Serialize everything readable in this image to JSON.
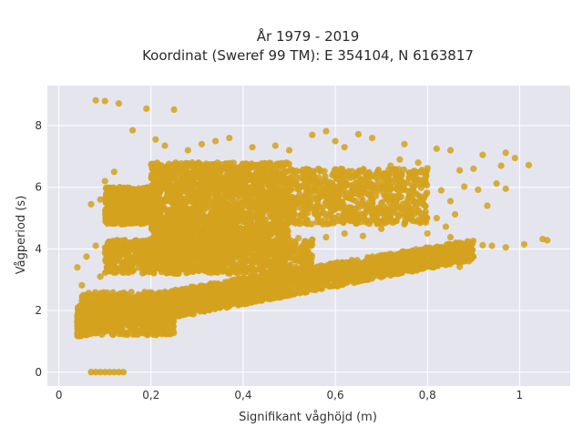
{
  "chart_data": {
    "type": "scatter",
    "title": "År 1979 - 2019",
    "subtitle": "Koordinat (Sweref 99 TM): E 354104, N 6163817",
    "xlabel": "Signifikant våghöjd (m)",
    "ylabel": "Vågperiod (s)",
    "xlim": [
      -0.025,
      1.11
    ],
    "ylim": [
      -0.45,
      9.3
    ],
    "xticks": [
      0,
      0.2,
      0.4,
      0.6,
      0.8,
      1
    ],
    "xtick_labels": [
      "0",
      "0,2",
      "0,4",
      "0,6",
      "0,8",
      "1"
    ],
    "yticks": [
      0,
      2,
      4,
      6,
      8
    ],
    "ytick_labels": [
      "0",
      "2",
      "4",
      "6",
      "8"
    ],
    "grid": true,
    "background": "#e5e5ee",
    "gridcolor": "#ffffff",
    "marker_color": "#d4a21d",
    "series": [
      {
        "name": "",
        "points": [
          [
            0.08,
            8.82
          ],
          [
            0.1,
            8.8
          ],
          [
            0.13,
            8.72
          ],
          [
            0.25,
            8.52
          ],
          [
            0.19,
            8.55
          ],
          [
            0.16,
            7.85
          ],
          [
            0.21,
            7.55
          ],
          [
            0.23,
            7.35
          ],
          [
            0.37,
            7.6
          ],
          [
            0.55,
            7.7
          ],
          [
            0.58,
            7.82
          ],
          [
            0.65,
            7.72
          ],
          [
            0.68,
            7.6
          ],
          [
            0.75,
            7.4
          ],
          [
            0.82,
            7.25
          ],
          [
            0.85,
            7.2
          ],
          [
            0.92,
            7.05
          ],
          [
            0.97,
            7.12
          ],
          [
            0.99,
            6.95
          ],
          [
            1.02,
            6.72
          ],
          [
            0.96,
            6.7
          ],
          [
            0.9,
            6.6
          ],
          [
            0.87,
            6.55
          ],
          [
            0.78,
            6.8
          ],
          [
            0.72,
            6.7
          ],
          [
            0.88,
            6.02
          ],
          [
            0.91,
            5.92
          ],
          [
            0.95,
            6.12
          ],
          [
            0.97,
            5.95
          ],
          [
            0.93,
            5.4
          ],
          [
            0.86,
            5.12
          ],
          [
            0.84,
            4.72
          ],
          [
            0.8,
            4.5
          ],
          [
            0.85,
            4.38
          ],
          [
            0.79,
            5.0
          ],
          [
            0.04,
            3.4
          ],
          [
            0.05,
            2.82
          ],
          [
            0.06,
            2.3
          ],
          [
            0.04,
            1.5
          ],
          [
            0.06,
            3.75
          ],
          [
            0.07,
            5.45
          ],
          [
            0.09,
            5.6
          ],
          [
            0.1,
            6.2
          ],
          [
            0.12,
            6.5
          ],
          [
            1.05,
            4.32
          ],
          [
            1.06,
            4.28
          ],
          [
            1.01,
            4.15
          ],
          [
            0.97,
            4.05
          ],
          [
            0.94,
            4.1
          ],
          [
            0.92,
            4.12
          ],
          [
            0.89,
            3.6
          ],
          [
            0.87,
            3.42
          ],
          [
            0.34,
            7.5
          ],
          [
            0.42,
            7.3
          ],
          [
            0.47,
            7.35
          ],
          [
            0.5,
            7.2
          ],
          [
            0.31,
            7.4
          ],
          [
            0.28,
            7.2
          ],
          [
            0.6,
            7.5
          ],
          [
            0.62,
            7.3
          ],
          [
            0.74,
            6.9
          ],
          [
            0.8,
            6.62
          ],
          [
            0.76,
            6.3
          ],
          [
            0.83,
            5.9
          ],
          [
            0.85,
            5.55
          ],
          [
            0.82,
            5.0
          ],
          [
            0.75,
            4.8
          ],
          [
            0.7,
            4.65
          ],
          [
            0.66,
            4.42
          ],
          [
            0.62,
            4.5
          ],
          [
            0.58,
            4.38
          ],
          [
            0.55,
            4.3
          ],
          [
            0.52,
            4.35
          ],
          [
            0.48,
            4.42
          ],
          [
            0.45,
            4.28
          ],
          [
            0.12,
            4.9
          ],
          [
            0.08,
            4.1
          ],
          [
            0.09,
            3.1
          ],
          [
            0.1,
            2.55
          ],
          [
            0.11,
            2.15
          ]
        ],
        "zero_points": [
          [
            0.07,
            0
          ],
          [
            0.08,
            0
          ],
          [
            0.09,
            0
          ],
          [
            0.1,
            0
          ],
          [
            0.11,
            0
          ],
          [
            0.12,
            0
          ],
          [
            0.13,
            0
          ],
          [
            0.14,
            0
          ]
        ],
        "dense_regions": [
          {
            "x": [
              0.2,
              0.5
            ],
            "y": [
              4.0,
              6.8
            ]
          },
          {
            "x": [
              0.1,
              0.55
            ],
            "y": [
              3.2,
              4.3
            ]
          },
          {
            "x": [
              0.5,
              0.8
            ],
            "y": [
              4.8,
              6.6
            ]
          },
          {
            "x": [
              0.05,
              0.25
            ],
            "y": [
              1.2,
              2.6
            ]
          },
          {
            "x": [
              0.1,
              0.2
            ],
            "y": [
              4.8,
              6.0
            ]
          }
        ],
        "lower_band": {
          "x": [
            0.04,
            0.9
          ],
          "y_start": [
            1.2,
            1.9
          ],
          "y_end": [
            3.7,
            4.05
          ]
        }
      }
    ]
  }
}
